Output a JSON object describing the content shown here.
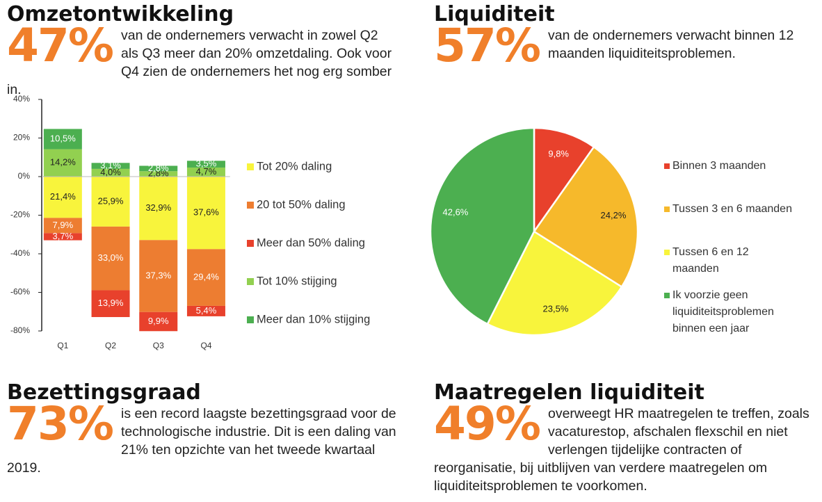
{
  "sections": {
    "omzet": {
      "title": "Omzetontwikkeling",
      "stat": "47%",
      "text": "van de ondernemers verwacht in zowel Q2 als Q3 meer dan 20% omzetdaling. Ook voor Q4 zien de ondernemers het nog erg somber in."
    },
    "liquiditeit": {
      "title": "Liquiditeit",
      "stat": "57%",
      "text": "van de ondernemers verwacht binnen 12 maanden liquiditeitsproblemen."
    },
    "bezetting": {
      "title": "Bezettingsgraad",
      "stat": "73%",
      "text": "is een record laagste bezettingsgraad voor de technologische industrie. Dit is een daling van 21% ten opzichte van het tweede kwartaal 2019."
    },
    "maatregelen": {
      "title": "Maatregelen liquiditeit",
      "stat": "49%",
      "text": "overweegt HR maatregelen te treffen, zoals vacaturestop, afschalen flexschil en niet verlengen tijdelijke contracten of reorganisatie, bij uitblijven van verdere maatregelen om liquiditeitsproblemen te voorkomen."
    }
  },
  "chart_data": [
    {
      "type": "stacked_bar",
      "categories": [
        "Q1",
        "Q2",
        "Q3",
        "Q4"
      ],
      "series": [
        {
          "name": "Tot 20% daling",
          "color": "#f8f43c",
          "values": [
            -21.4,
            -25.9,
            -32.9,
            -37.6
          ],
          "value_labels": [
            "21,4%",
            "25,9%",
            "32,9%",
            "37,6%"
          ]
        },
        {
          "name": "20 tot 50% daling",
          "color": "#ed7d31",
          "values": [
            -7.9,
            -33.0,
            -37.3,
            -29.4
          ],
          "value_labels": [
            "7,9%",
            "33,0%",
            "37,3%",
            "29,4%"
          ]
        },
        {
          "name": "Meer dan 50% daling",
          "color": "#e8412c",
          "values": [
            -3.7,
            -13.9,
            -9.9,
            -5.4
          ],
          "value_labels": [
            "3,7%",
            "13,9%",
            "9,9%",
            "5,4%"
          ]
        },
        {
          "name": "Tot 10% stijging",
          "color": "#92d050",
          "values": [
            14.2,
            4.0,
            2.8,
            4.7
          ],
          "value_labels": [
            "14,2%",
            "4,0%",
            "2,8%",
            "4,7%"
          ]
        },
        {
          "name": "Meer dan 10% stijging",
          "color": "#4caf50",
          "values": [
            10.5,
            3.1,
            2.8,
            3.5
          ],
          "value_labels": [
            "10,5%",
            "3,1%",
            "2,8%",
            "3,5%"
          ]
        }
      ],
      "ylim": [
        -80,
        40
      ],
      "yticks": [
        {
          "value": -80,
          "label": "-80%"
        },
        {
          "value": -60,
          "label": "-60%"
        },
        {
          "value": -40,
          "label": "-40%"
        },
        {
          "value": -20,
          "label": "-20%"
        },
        {
          "value": 0,
          "label": "0%"
        },
        {
          "value": 20,
          "label": "20%"
        },
        {
          "value": 40,
          "label": "40%"
        }
      ],
      "legend": "right"
    },
    {
      "type": "pie",
      "categories": [
        "Binnen 3 maanden",
        "Tussen 3 en 6 maanden",
        "Tussen 6 en 12 maanden",
        "Ik voorzie geen liquiditeitsproblemen binnen een jaar"
      ],
      "values": [
        9.8,
        24.2,
        23.5,
        42.6
      ],
      "value_labels": [
        "9,8%",
        "24,2%",
        "23,5%",
        "42,6%"
      ],
      "colors": [
        "#e8412c",
        "#f6b92b",
        "#f8f43c",
        "#4caf50"
      ],
      "legend": "right"
    }
  ]
}
